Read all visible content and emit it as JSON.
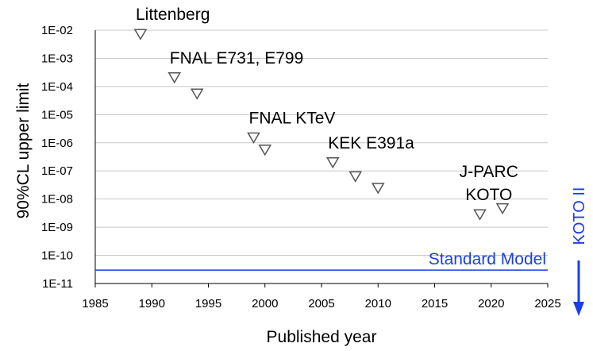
{
  "chart_data": {
    "type": "scatter",
    "xlabel": "Published year",
    "ylabel": "90%CL upper limit",
    "x_range": [
      1985,
      2025
    ],
    "x_ticks": [
      "1985",
      "1990",
      "1995",
      "2000",
      "2005",
      "2010",
      "2015",
      "2020",
      "2025"
    ],
    "y_range": [
      1e-11,
      0.01
    ],
    "y_scale": "log",
    "y_ticks": [
      "1E-02",
      "1E-03",
      "1E-04",
      "1E-05",
      "1E-06",
      "1E-07",
      "1E-08",
      "1E-09",
      "1E-10",
      "1E-11"
    ],
    "grid": true,
    "marker": "open-triangle-down",
    "points": [
      {
        "x": 1989,
        "y": 0.0076
      },
      {
        "x": 1992,
        "y": 0.00022
      },
      {
        "x": 1994,
        "y": 5.8e-05
      },
      {
        "x": 1999,
        "y": 1.6e-06
      },
      {
        "x": 2000,
        "y": 5.9e-07
      },
      {
        "x": 2006,
        "y": 2.1e-07
      },
      {
        "x": 2008,
        "y": 6.7e-08
      },
      {
        "x": 2010,
        "y": 2.6e-08
      },
      {
        "x": 2019,
        "y": 3e-09
      },
      {
        "x": 2021,
        "y": 4.9e-09
      }
    ],
    "annotations": [
      {
        "lines": [
          "Littenberg"
        ],
        "x": 1989,
        "y": 0.0076
      },
      {
        "lines": [
          "FNAL E731, E799"
        ],
        "x": 1992,
        "y": 0.00022
      },
      {
        "lines": [
          "FNAL KTeV"
        ],
        "x": 1999,
        "y": 1.6e-06
      },
      {
        "lines": [
          "KEK E391a"
        ],
        "x": 2006,
        "y": 2.1e-07
      },
      {
        "lines": [
          "J-PARC",
          "KOTO"
        ],
        "x": 2020,
        "y": 3e-09
      }
    ],
    "reference_line": {
      "label": "Standard Model",
      "y": 3e-11,
      "color": "#1a3fe6"
    },
    "side_arrow": {
      "label": "KOTO II",
      "direction": "down",
      "color": "#1a3fe6"
    },
    "colors": {
      "marker": "#555555",
      "grid": "#c8c8c8",
      "accent": "#1a3fe6"
    }
  }
}
